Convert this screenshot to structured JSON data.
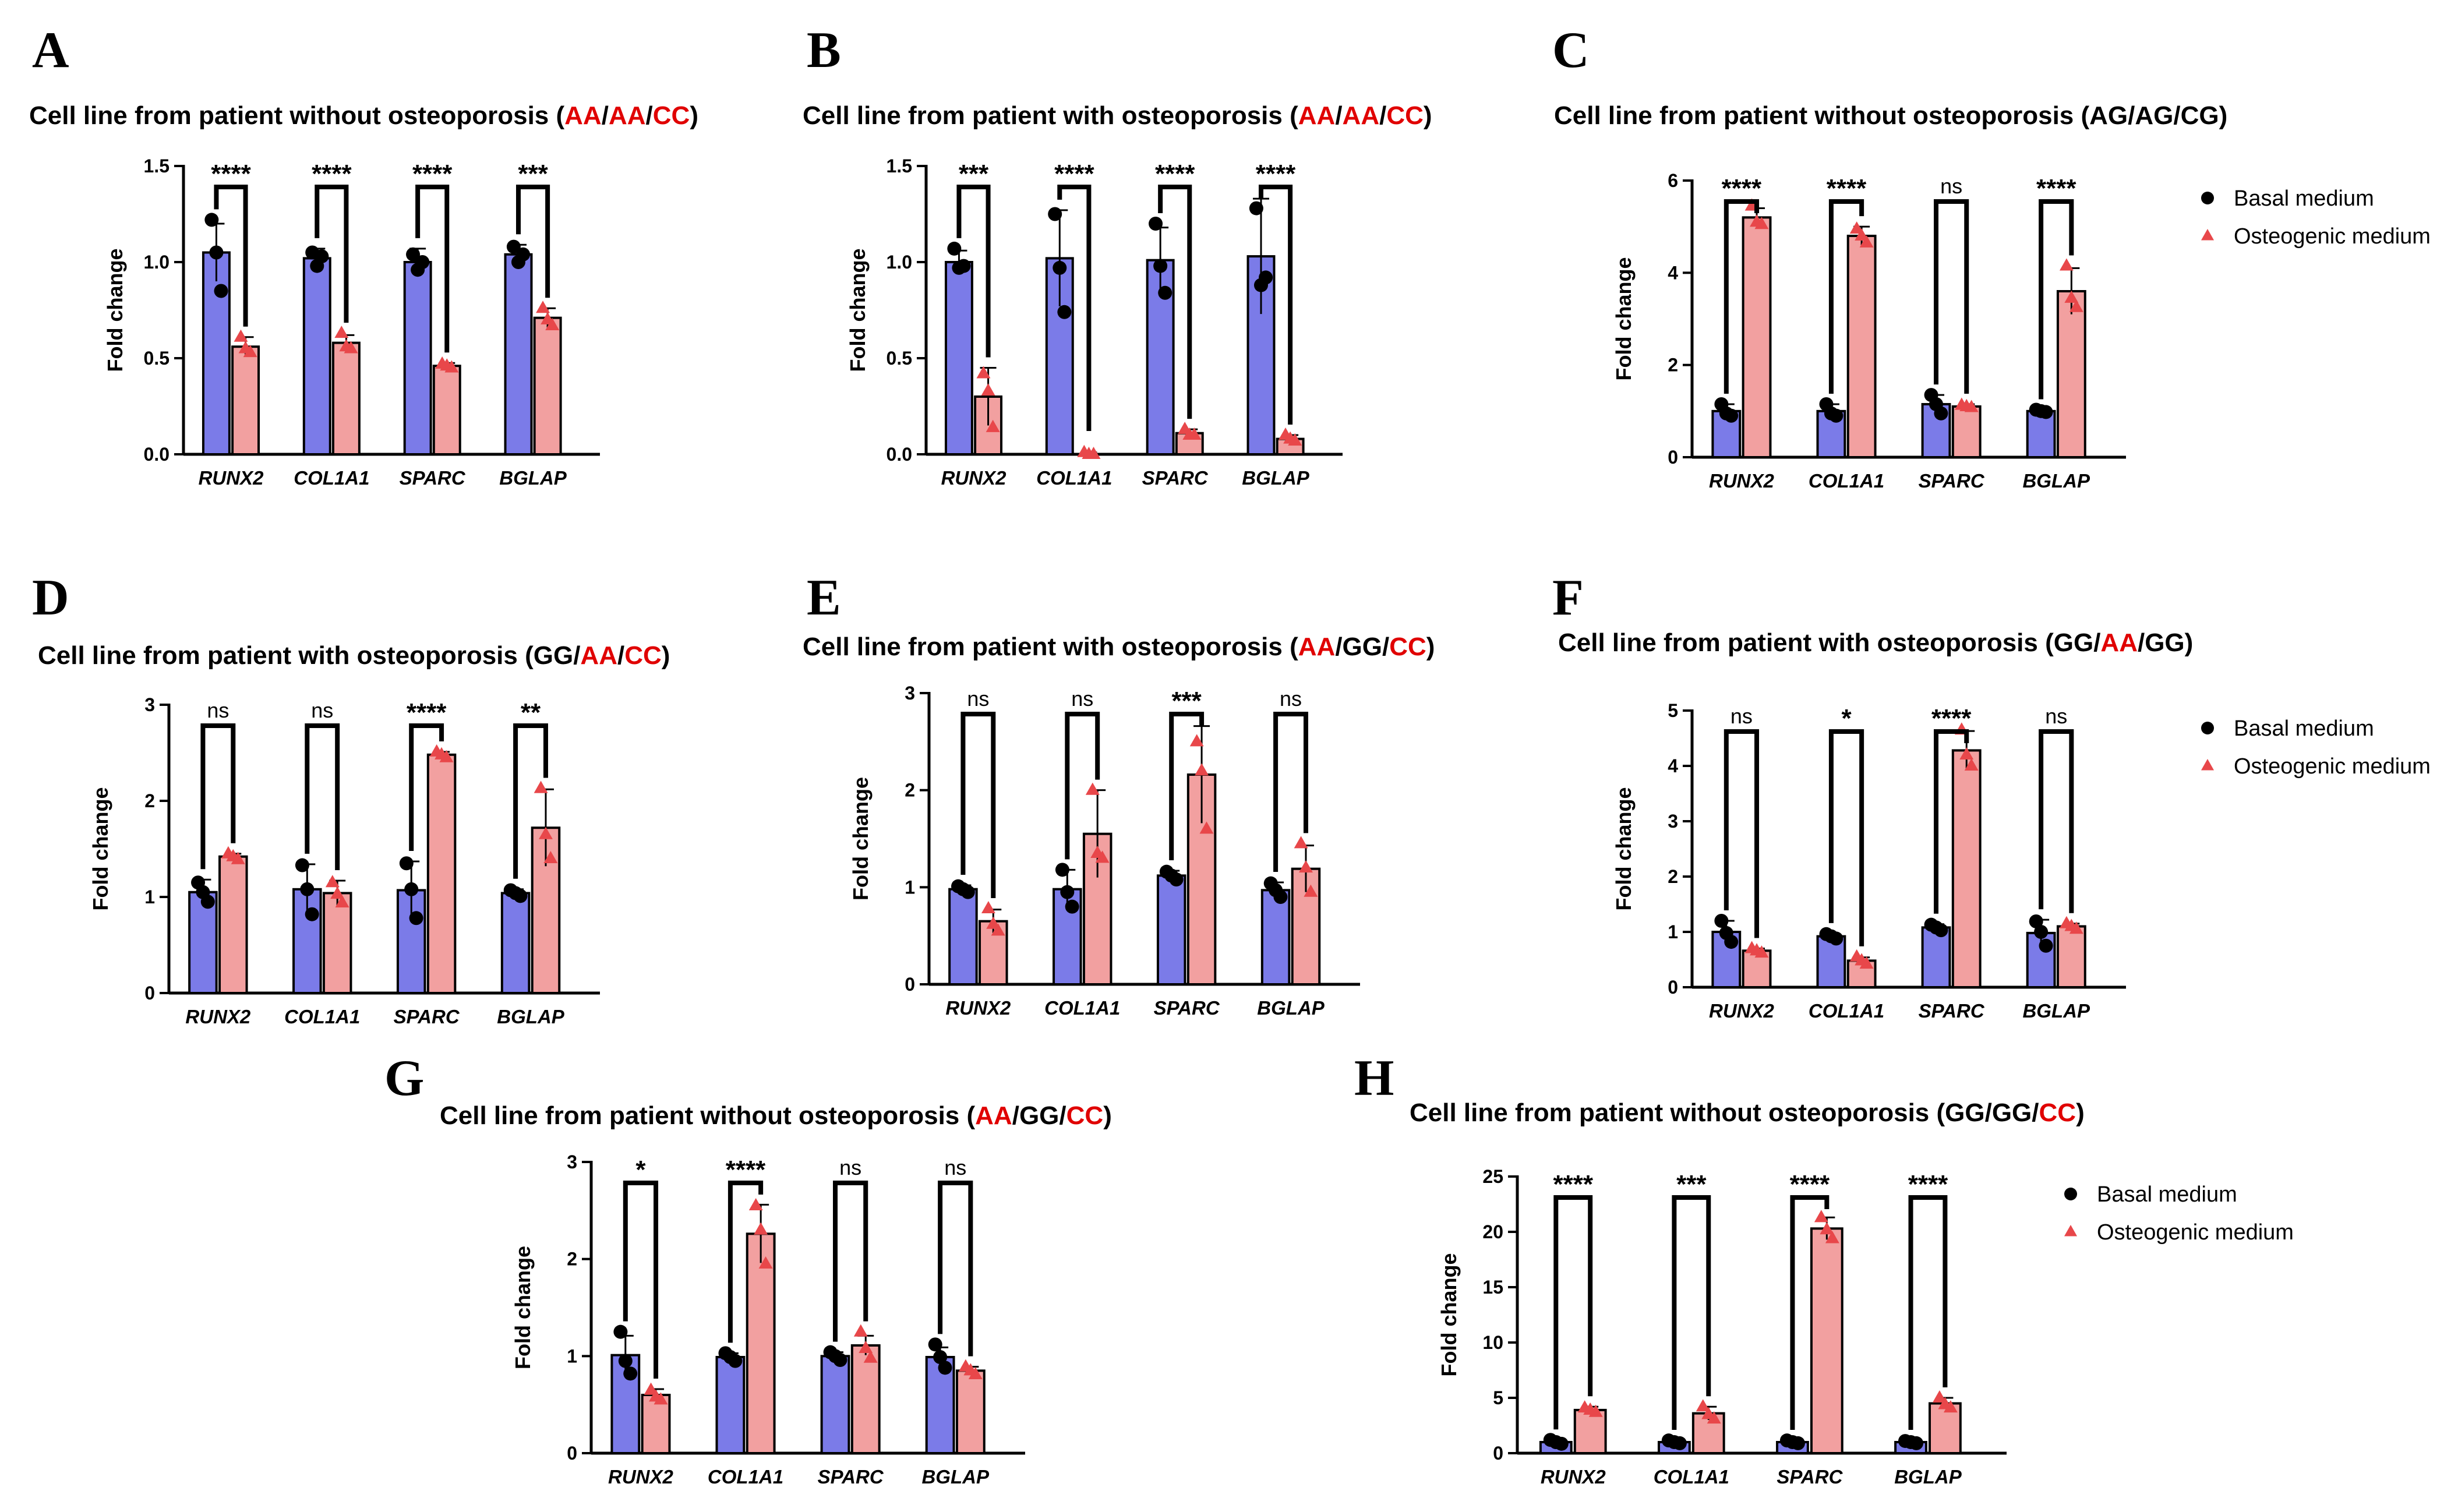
{
  "colors": {
    "basal": "#7b7be8",
    "osteo": "#f2a0a0",
    "basal_point": "#000000",
    "osteo_point": "#e8474a",
    "highlight": "#e00000"
  },
  "legend": {
    "basal": "Basal medium",
    "osteo": "Osteogenic medium"
  },
  "chart_data": [
    {
      "panel": "A",
      "type": "bar",
      "title": [
        {
          "t": "Cell line from patient without osteoporosis ("
        },
        {
          "t": "AA",
          "hl": true
        },
        {
          "t": "/"
        },
        {
          "t": "AA",
          "hl": true
        },
        {
          "t": "/"
        },
        {
          "t": "CC",
          "hl": true
        },
        {
          "t": ")"
        }
      ],
      "ylabel": "Fold change",
      "ylim": [
        0,
        1.5
      ],
      "yticks": [
        0.0,
        0.5,
        1.0,
        1.5
      ],
      "ytick_labels": [
        "0.0",
        "0.5",
        "1.0",
        "1.5"
      ],
      "categories": [
        "RUNX2",
        "COL1A1",
        "SPARC",
        "BGLAP"
      ],
      "series": [
        {
          "name": "Basal medium",
          "values": [
            1.05,
            1.02,
            1.0,
            1.04
          ],
          "errors": [
            0.15,
            0.05,
            0.07,
            0.05
          ],
          "points": [
            [
              1.22,
              1.05,
              0.85
            ],
            [
              1.05,
              0.98,
              1.03
            ],
            [
              1.04,
              0.96,
              1.0
            ],
            [
              1.08,
              1.0,
              1.04
            ]
          ]
        },
        {
          "name": "Osteogenic medium",
          "values": [
            0.56,
            0.58,
            0.46,
            0.71
          ],
          "errors": [
            0.05,
            0.04,
            0.015,
            0.05
          ],
          "points": [
            [
              0.61,
              0.55,
              0.53
            ],
            [
              0.63,
              0.56,
              0.55
            ],
            [
              0.47,
              0.46,
              0.45
            ],
            [
              0.76,
              0.7,
              0.67
            ]
          ]
        }
      ],
      "significance": [
        "****",
        "****",
        "****",
        "***"
      ]
    },
    {
      "panel": "B",
      "type": "bar",
      "title": [
        {
          "t": "Cell line from patient with osteoporosis ("
        },
        {
          "t": "AA",
          "hl": true
        },
        {
          "t": "/"
        },
        {
          "t": "AA",
          "hl": true
        },
        {
          "t": "/"
        },
        {
          "t": "CC",
          "hl": true
        },
        {
          "t": ")"
        }
      ],
      "ylabel": "Fold change",
      "ylim": [
        0,
        1.5
      ],
      "yticks": [
        0.0,
        0.5,
        1.0,
        1.5
      ],
      "ytick_labels": [
        "0.0",
        "0.5",
        "1.0",
        "1.5"
      ],
      "categories": [
        "RUNX2",
        "COL1A1",
        "SPARC",
        "BGLAP"
      ],
      "series": [
        {
          "name": "Basal medium",
          "values": [
            1.0,
            1.02,
            1.01,
            1.03
          ],
          "errors": [
            0.06,
            0.25,
            0.17,
            0.3
          ],
          "points": [
            [
              1.07,
              0.97,
              0.98
            ],
            [
              1.25,
              0.97,
              0.74
            ],
            [
              1.2,
              0.98,
              0.84
            ],
            [
              1.28,
              0.88,
              0.92
            ]
          ]
        },
        {
          "name": "Osteogenic medium",
          "values": [
            0.3,
            0.0,
            0.11,
            0.08
          ],
          "errors": [
            0.15,
            0.01,
            0.02,
            0.02
          ],
          "points": [
            [
              0.42,
              0.33,
              0.14
            ],
            [
              0.01,
              0.0,
              0.0
            ],
            [
              0.13,
              0.1,
              0.1
            ],
            [
              0.1,
              0.08,
              0.07
            ]
          ]
        }
      ],
      "significance": [
        "***",
        "****",
        "****",
        "****"
      ]
    },
    {
      "panel": "C",
      "type": "bar",
      "title": [
        {
          "t": "Cell line from patient without osteoporosis (AG/AG/CG)"
        }
      ],
      "ylabel": "Fold change",
      "ylim": [
        0,
        6
      ],
      "yticks": [
        0,
        2,
        4,
        6
      ],
      "ytick_labels": [
        "0",
        "2",
        "4",
        "6"
      ],
      "categories": [
        "RUNX2",
        "COL1A1",
        "SPARC",
        "BGLAP"
      ],
      "series": [
        {
          "name": "Basal medium",
          "values": [
            1.0,
            1.0,
            1.15,
            1.0
          ],
          "errors": [
            0.15,
            0.15,
            0.2,
            0.03
          ],
          "points": [
            [
              1.15,
              0.95,
              0.9
            ],
            [
              1.15,
              0.95,
              0.9
            ],
            [
              1.35,
              1.15,
              0.95
            ],
            [
              1.03,
              1.0,
              0.98
            ]
          ]
        },
        {
          "name": "Osteogenic medium",
          "values": [
            5.2,
            4.8,
            1.1,
            3.6
          ],
          "errors": [
            0.2,
            0.2,
            0.05,
            0.5
          ],
          "points": [
            [
              5.45,
              5.1,
              5.05
            ],
            [
              4.95,
              4.8,
              4.65
            ],
            [
              1.13,
              1.1,
              1.08
            ],
            [
              4.15,
              3.45,
              3.25
            ]
          ]
        }
      ],
      "significance": [
        "****",
        "****",
        "ns",
        "****"
      ]
    },
    {
      "panel": "D",
      "type": "bar",
      "title": [
        {
          "t": "Cell line from patient with osteoporosis (GG/"
        },
        {
          "t": "AA",
          "hl": true
        },
        {
          "t": "/"
        },
        {
          "t": "CC",
          "hl": true
        },
        {
          "t": ")"
        }
      ],
      "ylabel": "Fold change",
      "ylim": [
        0,
        3
      ],
      "yticks": [
        0,
        1,
        2,
        3
      ],
      "ytick_labels": [
        "0",
        "1",
        "2",
        "3"
      ],
      "categories": [
        "RUNX2",
        "COL1A1",
        "SPARC",
        "BGLAP"
      ],
      "series": [
        {
          "name": "Basal medium",
          "values": [
            1.05,
            1.08,
            1.07,
            1.04
          ],
          "errors": [
            0.13,
            0.26,
            0.3,
            0.04
          ],
          "points": [
            [
              1.15,
              1.05,
              0.95
            ],
            [
              1.33,
              1.08,
              0.82
            ],
            [
              1.35,
              1.08,
              0.78
            ],
            [
              1.07,
              1.04,
              1.01
            ]
          ]
        },
        {
          "name": "Osteogenic medium",
          "values": [
            1.42,
            1.04,
            2.48,
            1.72
          ],
          "errors": [
            0.03,
            0.13,
            0.03,
            0.4
          ],
          "points": [
            [
              1.45,
              1.42,
              1.39
            ],
            [
              1.15,
              1.03,
              0.94
            ],
            [
              2.51,
              2.48,
              2.45
            ],
            [
              2.13,
              1.65,
              1.4
            ]
          ]
        }
      ],
      "significance": [
        "ns",
        "ns",
        "****",
        "**"
      ]
    },
    {
      "panel": "E",
      "type": "bar",
      "title": [
        {
          "t": "Cell line from patient with osteoporosis ("
        },
        {
          "t": "AA",
          "hl": true
        },
        {
          "t": "/GG/"
        },
        {
          "t": "CC",
          "hl": true
        },
        {
          "t": ")"
        }
      ],
      "ylabel": "Fold change",
      "ylim": [
        0,
        3
      ],
      "yticks": [
        0,
        1,
        2,
        3
      ],
      "ytick_labels": [
        "0",
        "1",
        "2",
        "3"
      ],
      "categories": [
        "RUNX2",
        "COL1A1",
        "SPARC",
        "BGLAP"
      ],
      "series": [
        {
          "name": "Basal medium",
          "values": [
            0.98,
            0.98,
            1.12,
            0.97
          ],
          "errors": [
            0.04,
            0.2,
            0.05,
            0.08
          ],
          "points": [
            [
              1.01,
              0.98,
              0.95
            ],
            [
              1.18,
              0.95,
              0.8
            ],
            [
              1.16,
              1.12,
              1.08
            ],
            [
              1.04,
              0.97,
              0.9
            ]
          ]
        },
        {
          "name": "Osteogenic medium",
          "values": [
            0.65,
            1.55,
            2.16,
            1.19
          ],
          "errors": [
            0.12,
            0.45,
            0.5,
            0.24
          ],
          "points": [
            [
              0.78,
              0.62,
              0.55
            ],
            [
              2.0,
              1.35,
              1.3
            ],
            [
              2.5,
              2.2,
              1.6
            ],
            [
              1.45,
              1.2,
              0.95
            ]
          ]
        }
      ],
      "significance": [
        "ns",
        "ns",
        "***",
        "ns"
      ]
    },
    {
      "panel": "F",
      "type": "bar",
      "title": [
        {
          "t": "Cell line from patient with osteoporosis (GG/"
        },
        {
          "t": "AA",
          "hl": true
        },
        {
          "t": "/GG)"
        }
      ],
      "ylabel": "Fold change",
      "ylim": [
        0,
        5
      ],
      "yticks": [
        0,
        1,
        2,
        3,
        4,
        5
      ],
      "ytick_labels": [
        "0",
        "1",
        "2",
        "3",
        "4",
        "5"
      ],
      "categories": [
        "RUNX2",
        "COL1A1",
        "SPARC",
        "BGLAP"
      ],
      "series": [
        {
          "name": "Basal medium",
          "values": [
            1.0,
            0.92,
            1.08,
            0.98
          ],
          "errors": [
            0.2,
            0.05,
            0.06,
            0.24
          ],
          "points": [
            [
              1.2,
              0.98,
              0.82
            ],
            [
              0.96,
              0.92,
              0.88
            ],
            [
              1.13,
              1.08,
              1.03
            ],
            [
              1.19,
              1.0,
              0.75
            ]
          ]
        },
        {
          "name": "Osteogenic medium",
          "values": [
            0.66,
            0.48,
            4.28,
            1.1
          ],
          "errors": [
            0.04,
            0.06,
            0.35,
            0.05
          ],
          "points": [
            [
              0.7,
              0.66,
              0.62
            ],
            [
              0.55,
              0.48,
              0.42
            ],
            [
              4.65,
              4.2,
              4.0
            ],
            [
              1.15,
              1.1,
              1.05
            ]
          ]
        }
      ],
      "significance": [
        "ns",
        "*",
        "****",
        "ns"
      ]
    },
    {
      "panel": "G",
      "type": "bar",
      "title": [
        {
          "t": "Cell line from patient without osteoporosis ("
        },
        {
          "t": "AA",
          "hl": true
        },
        {
          "t": "/GG/"
        },
        {
          "t": "CC",
          "hl": true
        },
        {
          "t": ")"
        }
      ],
      "ylabel": "Fold change",
      "ylim": [
        0,
        3
      ],
      "yticks": [
        0,
        1,
        2,
        3
      ],
      "ytick_labels": [
        "0",
        "1",
        "2",
        "3"
      ],
      "categories": [
        "RUNX2",
        "COL1A1",
        "SPARC",
        "BGLAP"
      ],
      "series": [
        {
          "name": "Basal medium",
          "values": [
            1.01,
            0.99,
            1.0,
            0.99
          ],
          "errors": [
            0.2,
            0.04,
            0.04,
            0.1
          ],
          "points": [
            [
              1.25,
              0.95,
              0.82
            ],
            [
              1.03,
              0.99,
              0.95
            ],
            [
              1.04,
              1.0,
              0.96
            ],
            [
              1.12,
              0.99,
              0.88
            ]
          ]
        },
        {
          "name": "Osteogenic medium",
          "values": [
            0.6,
            2.26,
            1.11,
            0.85
          ],
          "errors": [
            0.06,
            0.3,
            0.1,
            0.04
          ],
          "points": [
            [
              0.65,
              0.58,
              0.55
            ],
            [
              2.55,
              2.3,
              1.95
            ],
            [
              1.25,
              1.08,
              0.98
            ],
            [
              0.89,
              0.85,
              0.81
            ]
          ]
        }
      ],
      "significance": [
        "*",
        "****",
        "ns",
        "ns"
      ]
    },
    {
      "panel": "H",
      "type": "bar",
      "title": [
        {
          "t": "Cell line from patient without osteoporosis (GG/GG/"
        },
        {
          "t": "CC",
          "hl": true
        },
        {
          "t": ")"
        }
      ],
      "ylabel": "Fold change",
      "ylim": [
        0,
        25
      ],
      "yticks": [
        0,
        5,
        10,
        15,
        20,
        25
      ],
      "ytick_labels": [
        "0",
        "5",
        "10",
        "15",
        "20",
        "25"
      ],
      "categories": [
        "RUNX2",
        "COL1A1",
        "SPARC",
        "BGLAP"
      ],
      "series": [
        {
          "name": "Basal medium",
          "values": [
            1.0,
            1.0,
            1.0,
            1.0
          ],
          "errors": [
            0.2,
            0.15,
            0.15,
            0.15
          ],
          "points": [
            [
              1.2,
              1.0,
              0.85
            ],
            [
              1.15,
              1.0,
              0.9
            ],
            [
              1.15,
              1.0,
              0.9
            ],
            [
              1.1,
              1.0,
              0.9
            ]
          ]
        },
        {
          "name": "Osteogenic medium",
          "values": [
            3.9,
            3.6,
            20.3,
            4.5
          ],
          "errors": [
            0.3,
            0.6,
            1.0,
            0.5
          ],
          "points": [
            [
              4.1,
              3.9,
              3.7
            ],
            [
              4.2,
              3.5,
              3.1
            ],
            [
              21.3,
              20.2,
              19.4
            ],
            [
              5.0,
              4.4,
              4.1
            ]
          ]
        }
      ],
      "significance": [
        "****",
        "***",
        "****",
        "****"
      ]
    }
  ]
}
